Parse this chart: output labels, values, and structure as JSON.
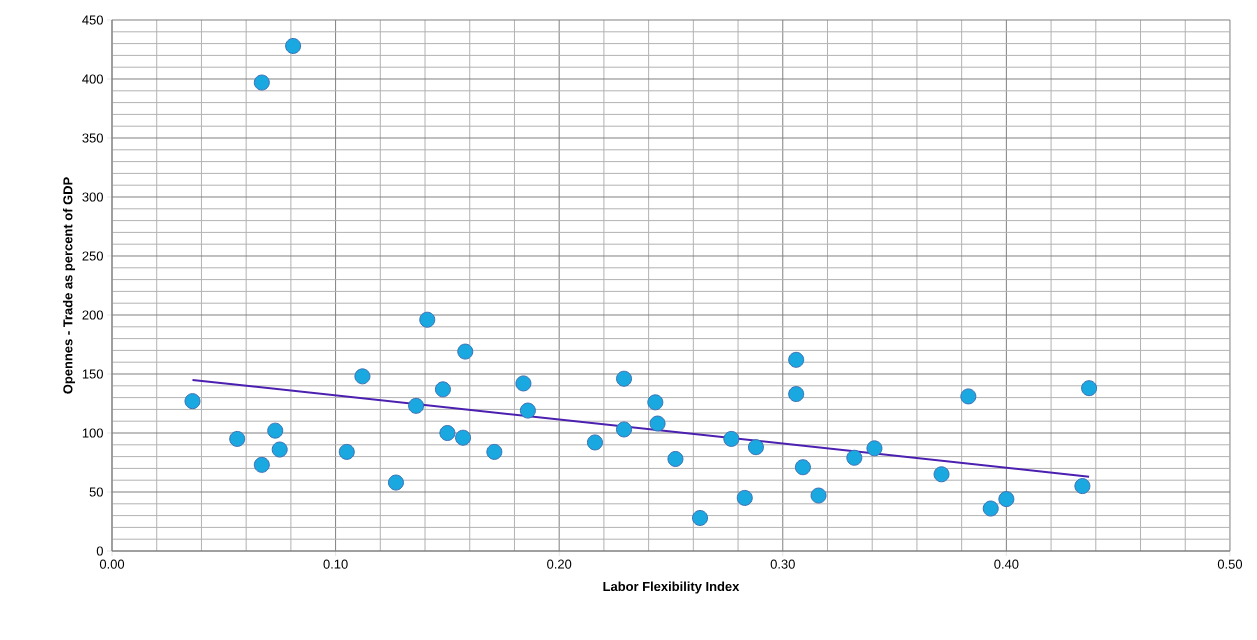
{
  "chart_data": {
    "type": "scatter",
    "xlabel": "Labor Flexibility Index",
    "ylabel": "Opennes - Trade as percent of GDP",
    "xlim": [
      0,
      0.5
    ],
    "ylim": [
      0,
      450
    ],
    "xticks": [
      {
        "value": 0,
        "label": "0.00"
      },
      {
        "value": 0.1,
        "label": "0.10"
      },
      {
        "value": 0.2,
        "label": "0.20"
      },
      {
        "value": 0.3,
        "label": "0.30"
      },
      {
        "value": 0.4,
        "label": "0.40"
      },
      {
        "value": 0.5,
        "label": "0.50"
      }
    ],
    "yticks": [
      0,
      50,
      100,
      150,
      200,
      250,
      300,
      350,
      400,
      450
    ],
    "grid": true,
    "series": [
      {
        "color": "#1aa8e0",
        "marker": "circle",
        "x": [
          0.036,
          0.056,
          0.067,
          0.067,
          0.073,
          0.075,
          0.081,
          0.105,
          0.112,
          0.127,
          0.136,
          0.141,
          0.148,
          0.15,
          0.157,
          0.158,
          0.171,
          0.184,
          0.186,
          0.216,
          0.229,
          0.229,
          0.243,
          0.244,
          0.252,
          0.263,
          0.277,
          0.283,
          0.288,
          0.306,
          0.306,
          0.309,
          0.316,
          0.332,
          0.341,
          0.371,
          0.383,
          0.393,
          0.4,
          0.434,
          0.437
        ],
        "values": [
          127,
          95,
          73,
          397,
          102,
          86,
          428,
          84,
          148,
          58,
          123,
          196,
          137,
          100,
          96,
          169,
          84,
          142,
          119,
          92,
          146,
          103,
          126,
          108,
          78,
          28,
          95,
          45,
          88,
          162,
          133,
          71,
          47,
          79,
          87,
          65,
          131,
          36,
          44,
          55,
          138
        ]
      },
      {
        "type": "line",
        "color": "#4b1fb0",
        "marker": "none",
        "x": [
          0.036,
          0.437
        ],
        "values": [
          145,
          63
        ]
      }
    ]
  }
}
